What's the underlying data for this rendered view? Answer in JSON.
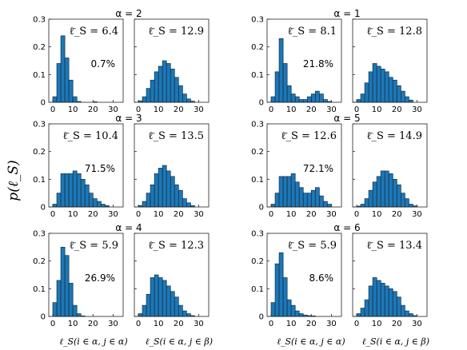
{
  "figure": {
    "ylabel": "p(ℓ_S)",
    "xlabels": [
      "ℓ_S(i ∈ α, j ∈ α)",
      "ℓ_S(i ∈ α, j ∈ β)"
    ],
    "bar_color": "#1f77b4"
  },
  "chart_data": [
    {
      "type": "bar",
      "title": "α = 2",
      "panels": [
        {
          "x": [
            1,
            3,
            5,
            7,
            9,
            11,
            13,
            15,
            17,
            19,
            21,
            23,
            25,
            27,
            29,
            31
          ],
          "values": [
            0.02,
            0.14,
            0.24,
            0.16,
            0.08,
            0.02,
            0.003,
            0,
            0,
            0,
            0.002,
            0,
            0,
            0,
            0,
            0
          ],
          "mean_label": "ℓ̄_S = 6.4",
          "percent_label": "0.7%",
          "xlim": [
            -2,
            35
          ],
          "ylim": [
            0,
            0.3
          ],
          "xticks": [
            0,
            10,
            20,
            30
          ],
          "yticks": [
            0,
            0.1,
            0.2,
            0.3
          ]
        },
        {
          "x": [
            1,
            3,
            5,
            7,
            9,
            11,
            13,
            15,
            17,
            19,
            21,
            23,
            25,
            27,
            29,
            31
          ],
          "values": [
            0.005,
            0.02,
            0.05,
            0.08,
            0.11,
            0.13,
            0.15,
            0.14,
            0.12,
            0.09,
            0.06,
            0.03,
            0.012,
            0.004,
            0,
            0
          ],
          "mean_label": "ℓ̄_S = 12.9",
          "xlim": [
            -2,
            35
          ],
          "ylim": [
            0,
            0.3
          ],
          "xticks": [
            0,
            10,
            20,
            30
          ]
        }
      ]
    },
    {
      "type": "bar",
      "title": "α = 1",
      "panels": [
        {
          "x": [
            1,
            3,
            5,
            7,
            9,
            11,
            13,
            15,
            17,
            19,
            21,
            23,
            25,
            27,
            29,
            31
          ],
          "values": [
            0.02,
            0.11,
            0.23,
            0.14,
            0.06,
            0.03,
            0.02,
            0.01,
            0.01,
            0.02,
            0.03,
            0.04,
            0.03,
            0.01,
            0.003,
            0
          ],
          "mean_label": "ℓ̄_S = 8.1",
          "percent_label": "21.8%",
          "xlim": [
            -2,
            35
          ],
          "ylim": [
            0,
            0.3
          ],
          "xticks": [
            0,
            10,
            20,
            30
          ],
          "yticks": [
            0,
            0.1,
            0.2,
            0.3
          ]
        },
        {
          "x": [
            1,
            3,
            5,
            7,
            9,
            11,
            13,
            15,
            17,
            19,
            21,
            23,
            25,
            27,
            29,
            31
          ],
          "values": [
            0.01,
            0.03,
            0.07,
            0.11,
            0.14,
            0.13,
            0.12,
            0.11,
            0.09,
            0.08,
            0.06,
            0.04,
            0.02,
            0.008,
            0,
            0
          ],
          "mean_label": "ℓ̄_S = 12.8",
          "xlim": [
            -2,
            35
          ],
          "ylim": [
            0,
            0.3
          ],
          "xticks": [
            0,
            10,
            20,
            30
          ]
        }
      ]
    },
    {
      "type": "bar",
      "title": "α = 3",
      "panels": [
        {
          "x": [
            1,
            3,
            5,
            7,
            9,
            11,
            13,
            15,
            17,
            19,
            21,
            23,
            25,
            27,
            29,
            31
          ],
          "values": [
            0.01,
            0.05,
            0.12,
            0.12,
            0.12,
            0.13,
            0.12,
            0.1,
            0.08,
            0.05,
            0.03,
            0.02,
            0.01,
            0.005,
            0,
            0
          ],
          "mean_label": "ℓ̄_S = 10.4",
          "percent_label": "71.5%",
          "xlim": [
            -2,
            35
          ],
          "ylim": [
            0,
            0.3
          ],
          "xticks": [
            0,
            10,
            20,
            30
          ],
          "yticks": [
            0,
            0.1,
            0.2,
            0.3
          ]
        },
        {
          "x": [
            1,
            3,
            5,
            7,
            9,
            11,
            13,
            15,
            17,
            19,
            21,
            23,
            25,
            27,
            29,
            31
          ],
          "values": [
            0.005,
            0.02,
            0.05,
            0.08,
            0.12,
            0.14,
            0.15,
            0.13,
            0.11,
            0.08,
            0.06,
            0.03,
            0.015,
            0.005,
            0,
            0
          ],
          "mean_label": "ℓ̄_S = 13.5",
          "xlim": [
            -2,
            35
          ],
          "ylim": [
            0,
            0.3
          ],
          "xticks": [
            0,
            10,
            20,
            30
          ]
        }
      ]
    },
    {
      "type": "bar",
      "title": "α = 5",
      "panels": [
        {
          "x": [
            1,
            3,
            5,
            7,
            9,
            11,
            13,
            15,
            17,
            19,
            21,
            23,
            25,
            27,
            29,
            31
          ],
          "values": [
            0.01,
            0.05,
            0.11,
            0.11,
            0.11,
            0.12,
            0.09,
            0.07,
            0.05,
            0.05,
            0.06,
            0.07,
            0.04,
            0.02,
            0.01,
            0
          ],
          "mean_label": "ℓ̄_S = 12.6",
          "percent_label": "72.1%",
          "xlim": [
            -2,
            35
          ],
          "ylim": [
            0,
            0.3
          ],
          "xticks": [
            0,
            10,
            20,
            30
          ],
          "yticks": [
            0,
            0.1,
            0.2,
            0.3
          ]
        },
        {
          "x": [
            1,
            3,
            5,
            7,
            9,
            11,
            13,
            15,
            17,
            19,
            21,
            23,
            25,
            27,
            29,
            31
          ],
          "values": [
            0.003,
            0.01,
            0.03,
            0.06,
            0.09,
            0.11,
            0.13,
            0.13,
            0.12,
            0.1,
            0.08,
            0.05,
            0.03,
            0.01,
            0.004,
            0
          ],
          "mean_label": "ℓ̄_S = 14.9",
          "xlim": [
            -2,
            35
          ],
          "ylim": [
            0,
            0.3
          ],
          "xticks": [
            0,
            10,
            20,
            30
          ]
        }
      ]
    },
    {
      "type": "bar",
      "title": "α = 4",
      "panels": [
        {
          "x": [
            1,
            3,
            5,
            7,
            9,
            11,
            13,
            15,
            17,
            19,
            21,
            23,
            25,
            27,
            29,
            31
          ],
          "values": [
            0.05,
            0.13,
            0.25,
            0.22,
            0.12,
            0.04,
            0.01,
            0.002,
            0,
            0,
            0,
            0,
            0,
            0,
            0,
            0
          ],
          "mean_label": "ℓ̄_S = 5.9",
          "percent_label": "26.9%",
          "xlim": [
            -2,
            35
          ],
          "ylim": [
            0,
            0.3
          ],
          "xticks": [
            0,
            10,
            20,
            30
          ],
          "yticks": [
            0,
            0.1,
            0.2,
            0.3
          ]
        },
        {
          "x": [
            1,
            3,
            5,
            7,
            9,
            11,
            13,
            15,
            17,
            19,
            21,
            23,
            25,
            27,
            29,
            31
          ],
          "values": [
            0.01,
            0.04,
            0.08,
            0.14,
            0.15,
            0.14,
            0.13,
            0.11,
            0.09,
            0.07,
            0.04,
            0.02,
            0.01,
            0.003,
            0,
            0
          ],
          "mean_label": "ℓ̄_S = 12.3",
          "xlim": [
            -2,
            35
          ],
          "ylim": [
            0,
            0.3
          ],
          "xticks": [
            0,
            10,
            20,
            30
          ]
        }
      ]
    },
    {
      "type": "bar",
      "title": "α = 6",
      "panels": [
        {
          "x": [
            1,
            3,
            5,
            7,
            9,
            11,
            13,
            15,
            17,
            19,
            21,
            23,
            25,
            27,
            29,
            31
          ],
          "values": [
            0.05,
            0.19,
            0.23,
            0.14,
            0.06,
            0.04,
            0.02,
            0.01,
            0.005,
            0.003,
            0.002,
            0,
            0,
            0,
            0,
            0
          ],
          "mean_label": "ℓ̄_S = 5.9",
          "percent_label": "8.6%",
          "xlim": [
            -2,
            35
          ],
          "ylim": [
            0,
            0.3
          ],
          "xticks": [
            0,
            10,
            20,
            30
          ],
          "yticks": [
            0,
            0.1,
            0.2,
            0.3
          ]
        },
        {
          "x": [
            1,
            3,
            5,
            7,
            9,
            11,
            13,
            15,
            17,
            19,
            21,
            23,
            25,
            27,
            29,
            31
          ],
          "values": [
            0.01,
            0.03,
            0.06,
            0.11,
            0.14,
            0.13,
            0.12,
            0.11,
            0.1,
            0.09,
            0.07,
            0.04,
            0.02,
            0.01,
            0.003,
            0
          ],
          "mean_label": "ℓ̄_S = 13.4",
          "xlim": [
            -2,
            35
          ],
          "ylim": [
            0,
            0.3
          ],
          "xticks": [
            0,
            10,
            20,
            30
          ]
        }
      ]
    }
  ]
}
